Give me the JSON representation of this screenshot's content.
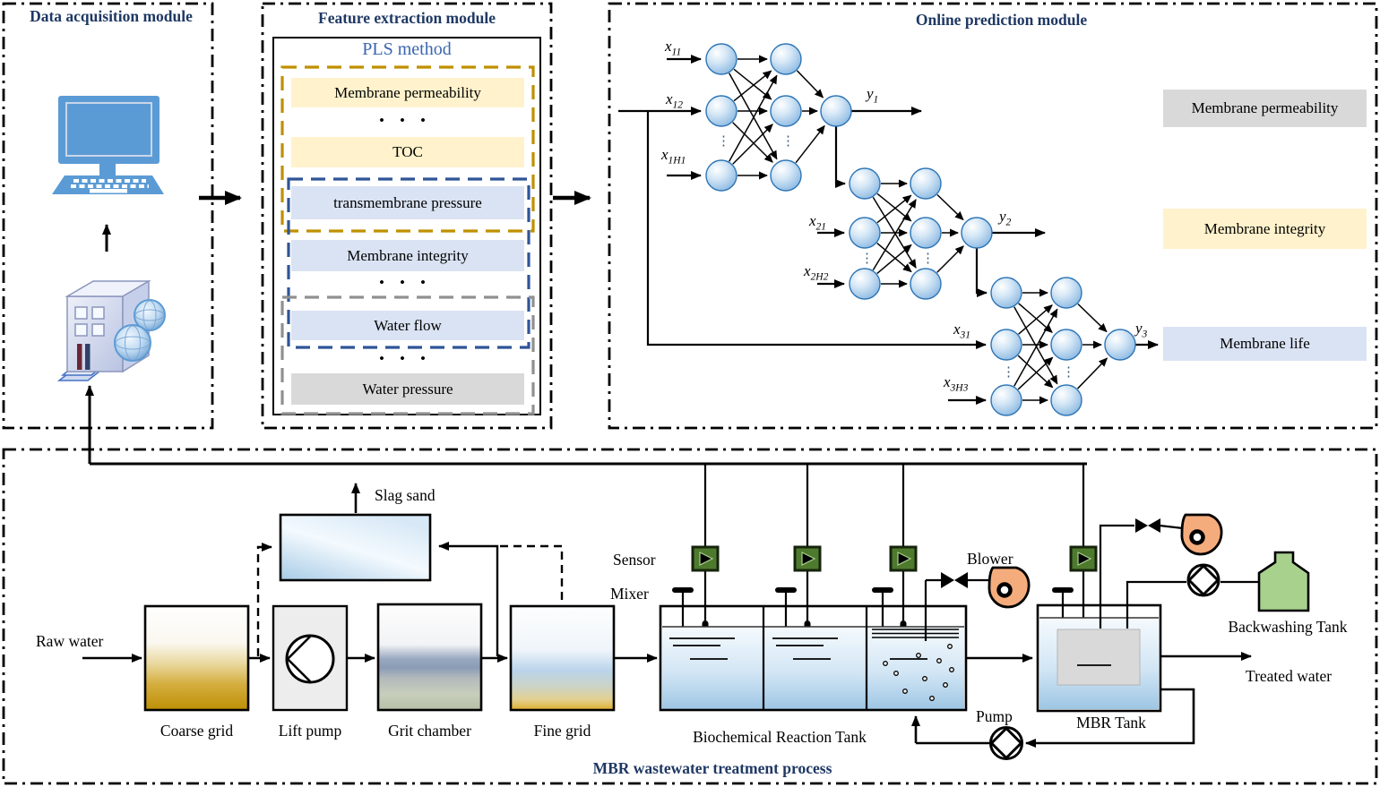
{
  "colors": {
    "title_navy": "#1F3864",
    "pls_blue": "#3A66B0",
    "cream": "#FFF2CC",
    "light_blue": "#DAE3F3",
    "gray": "#D9D9D9",
    "gold_dash": "#BF9000",
    "blue_dash": "#2F5597",
    "gray_dash": "#909090",
    "node_blue": "#85B5E0",
    "sensor_green": "#4E7A2E",
    "blower_orange": "#F5AC7C",
    "backwash_green": "#A9D18E"
  },
  "data_acquisition": {
    "title": "Data acquisition module"
  },
  "feature_extraction": {
    "title": "Feature extraction module",
    "method_label": "PLS method",
    "ellipsis": "• • •",
    "features": {
      "membrane_permeability": "Membrane permeability",
      "toc": "TOC",
      "transmembrane_pressure": "transmembrane pressure",
      "membrane_integrity": "Membrane integrity",
      "water_flow": "Water flow",
      "water_pressure": "Water pressure"
    }
  },
  "online_prediction": {
    "title": "Online prediction module",
    "vdots": "⋮",
    "io": {
      "x11": {
        "base": "x",
        "sub": "11"
      },
      "x12": {
        "base": "x",
        "sub": "12"
      },
      "x1H1": {
        "base": "x",
        "sub": "1H1"
      },
      "x21": {
        "base": "x",
        "sub": "21"
      },
      "x2H2": {
        "base": "x",
        "sub": "2H2"
      },
      "x31": {
        "base": "x",
        "sub": "31"
      },
      "x3H3": {
        "base": "x",
        "sub": "3H3"
      },
      "y1": {
        "base": "y",
        "sub": "1"
      },
      "y2": {
        "base": "y",
        "sub": "2"
      },
      "y3": {
        "base": "y",
        "sub": "3"
      }
    },
    "targets": {
      "membrane_permeability": "Membrane permeability",
      "membrane_integrity": "Membrane integrity",
      "membrane_life": "Membrane life"
    }
  },
  "process": {
    "title": "MBR wastewater treatment process",
    "labels": {
      "raw_water": "Raw water",
      "coarse_grid": "Coarse grid",
      "lift_pump": "Lift pump",
      "grit_chamber": "Grit chamber",
      "fine_grid": "Fine grid",
      "slag_sand": "Slag sand",
      "sensor": "Sensor",
      "mixer": "Mixer",
      "biochemical_tank": "Biochemical Reaction Tank",
      "blower": "Blower",
      "mbr_tank": "MBR Tank",
      "pump": "Pump",
      "backwashing_tank": "Backwashing Tank",
      "treated_water": "Treated water"
    }
  }
}
